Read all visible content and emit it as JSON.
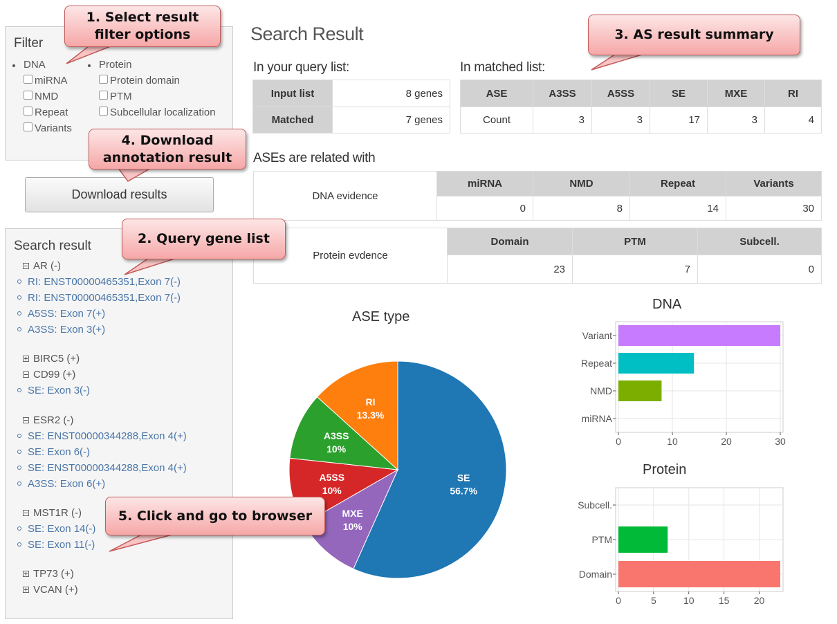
{
  "filter": {
    "title": "Filter",
    "dna_label": "DNA",
    "dna_options": [
      "miRNA",
      "NMD",
      "Repeat",
      "Variants"
    ],
    "protein_label": "Protein",
    "protein_options": [
      "Protein domain",
      "PTM",
      "Subcellular localization"
    ]
  },
  "download_button": "Download results",
  "search_result": {
    "title": "Search result",
    "genes": [
      {
        "name": "AR (-)",
        "expanded": true,
        "items": [
          "RI: ENST00000465351,Exon 7(-)",
          "RI: ENST00000465351,Exon 7(-)",
          "A5SS: Exon 7(+)",
          "A3SS: Exon 3(+)"
        ]
      },
      {
        "name": "BIRC5 (+)",
        "expanded": false,
        "items": []
      },
      {
        "name": "CD99 (+)",
        "expanded": true,
        "items": [
          "SE: Exon 3(-)"
        ]
      },
      {
        "name": "ESR2 (-)",
        "expanded": true,
        "items": [
          "SE: ENST00000344288,Exon 4(+)",
          "SE: Exon 6(-)",
          "SE: ENST00000344288,Exon 4(+)",
          "A3SS: Exon 6(+)"
        ]
      },
      {
        "name": "MST1R (-)",
        "expanded": true,
        "items": [
          "SE: Exon 14(-)",
          "SE: Exon 11(-)"
        ]
      },
      {
        "name": "TP73 (+)",
        "expanded": false,
        "items": []
      },
      {
        "name": "VCAN (+)",
        "expanded": false,
        "items": []
      }
    ]
  },
  "main": {
    "title": "Search Result",
    "query_heading": "In your query list:",
    "query_table": [
      [
        "Input list",
        "8 genes"
      ],
      [
        "Matched",
        "7 genes"
      ]
    ],
    "matched_heading": "In matched list:",
    "matched_headers": [
      "ASE",
      "A3SS",
      "A5SS",
      "SE",
      "MXE",
      "RI"
    ],
    "matched_row": [
      "Count",
      "3",
      "3",
      "17",
      "3",
      "4"
    ],
    "related_heading": "ASEs are related with",
    "dna_evidence": {
      "label": "DNA evidence",
      "headers": [
        "miRNA",
        "NMD",
        "Repeat",
        "Variants"
      ],
      "values": [
        "0",
        "8",
        "14",
        "30"
      ]
    },
    "protein_evidence": {
      "label": "Protein evdence",
      "headers": [
        "Domain",
        "PTM",
        "Subcell."
      ],
      "values": [
        "23",
        "7",
        "0"
      ]
    }
  },
  "callouts": {
    "c1": "1. Select result filter options",
    "c2": "2. Query gene list",
    "c3": "3. AS result summary",
    "c4": "4. Download annotation result",
    "c5": "5. Click and go to browser"
  },
  "chart_data": [
    {
      "type": "pie",
      "title": "ASE type",
      "categories": [
        "SE",
        "MXE",
        "A5SS",
        "A3SS",
        "RI"
      ],
      "values": [
        56.7,
        10,
        10,
        10,
        13.3
      ],
      "labels": [
        "56.7%",
        "10%",
        "10%",
        "10%",
        "13.3%"
      ],
      "colors": [
        "#1f77b4",
        "#9467bd",
        "#d62728",
        "#2ca02c",
        "#ff7f0e"
      ]
    },
    {
      "type": "bar",
      "orientation": "horizontal",
      "title": "DNA",
      "categories": [
        "miRNA",
        "NMD",
        "Repeat",
        "Variant"
      ],
      "values": [
        0,
        8,
        14,
        30
      ],
      "colors": [
        "#f8766d",
        "#7cae00",
        "#00bfc4",
        "#c77cff"
      ],
      "xlim": [
        0,
        30
      ],
      "xticks": [
        0,
        10,
        20,
        30
      ],
      "grid": true
    },
    {
      "type": "bar",
      "orientation": "horizontal",
      "title": "Protein",
      "categories": [
        "Domain",
        "PTM",
        "Subcell."
      ],
      "values": [
        23,
        7,
        0
      ],
      "colors": [
        "#f8766d",
        "#00ba38",
        "#619cff"
      ],
      "xlim": [
        0,
        23
      ],
      "xticks": [
        0,
        5,
        10,
        15,
        20
      ],
      "grid": true
    }
  ]
}
